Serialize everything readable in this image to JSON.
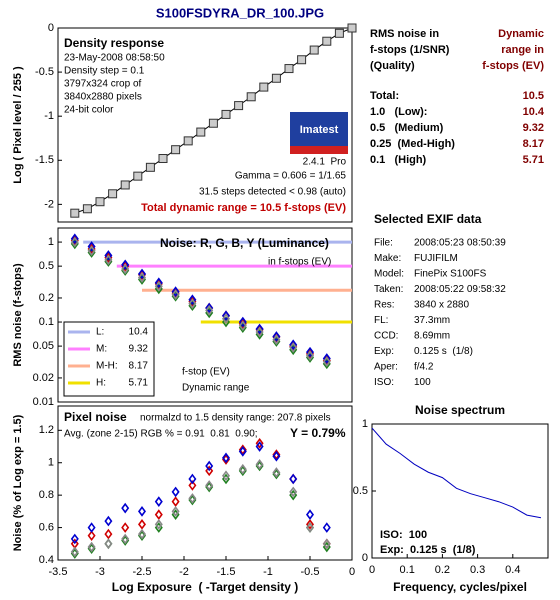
{
  "title": "S100FSDYRA_DR_100.JPG",
  "summary": {
    "header_left": [
      "RMS noise in",
      "f-stops (1/SNR)",
      "(Quality)"
    ],
    "header_right": [
      "Dynamic",
      "range in",
      "f-stops (EV)"
    ],
    "rows": [
      {
        "label": "Total:",
        "value": 10.5
      },
      {
        "label": "1.0   (Low):",
        "value": 10.4
      },
      {
        "label": "0.5   (Medium)",
        "value": 9.32
      },
      {
        "label": "0.25  (Med-High)",
        "value": 8.17
      },
      {
        "label": "0.1   (High)",
        "value": 5.71
      }
    ]
  },
  "exif": {
    "title": "Selected EXIF data",
    "rows": [
      {
        "key": "File:",
        "value": "2008:05:23 08:50:39"
      },
      {
        "key": "Make:",
        "value": "FUJIFILM"
      },
      {
        "key": "Model:",
        "value": "FinePix S100FS"
      },
      {
        "key": "Taken:",
        "value": "2008:05:22 09:58:32"
      },
      {
        "key": "Res:",
        "value": "3840 x 2880"
      },
      {
        "key": "FL:",
        "value": "37.3mm"
      },
      {
        "key": "CCD:",
        "value": "8.69mm"
      },
      {
        "key": "Exp:",
        "value": "0.125 s  (1/8)"
      },
      {
        "key": "Aper:",
        "value": "f/4.2"
      },
      {
        "key": "ISO:",
        "value": "100"
      }
    ]
  },
  "chart_data": [
    {
      "type": "line",
      "marker": "square",
      "title": "Density response",
      "info": [
        "23-May-2008 08:58:50",
        "Density step = 0.1",
        "3797x324 crop of",
        "3840x2880 pixels",
        "24-bit color"
      ],
      "logo": "Imatest",
      "version": "2.4.1  Pro",
      "fit_notes": [
        "Gamma = 0.606 = 1/1.65",
        "31.5 steps detected < 0.98 (auto)"
      ],
      "total": "Total dynamic range = 10.5 f-stops (EV)",
      "ylabel": "Log ( Pixel level / 255 )",
      "xlim": [
        -3.5,
        0
      ],
      "ylim": [
        -2.2,
        0
      ],
      "yticks": [
        0,
        -0.5,
        -1,
        -1.5,
        -2
      ],
      "x": [
        -3.3,
        -3.15,
        -3.0,
        -2.85,
        -2.7,
        -2.55,
        -2.4,
        -2.25,
        -2.1,
        -1.95,
        -1.8,
        -1.65,
        -1.5,
        -1.35,
        -1.2,
        -1.05,
        -0.9,
        -0.75,
        -0.6,
        -0.45,
        -0.3,
        -0.15,
        0
      ],
      "values": [
        -2.1,
        -2.05,
        -1.97,
        -1.88,
        -1.78,
        -1.68,
        -1.58,
        -1.48,
        -1.38,
        -1.28,
        -1.18,
        -1.08,
        -0.98,
        -0.88,
        -0.78,
        -0.67,
        -0.57,
        -0.46,
        -0.36,
        -0.25,
        -0.15,
        -0.06,
        0
      ],
      "color": "#cccccc"
    },
    {
      "type": "scatter",
      "log_y": true,
      "title": "Noise: R, G, B, Y (Luminance)",
      "subtitle": "in f-stops (EV)",
      "legend_notes": [
        "f-stop (EV)",
        "Dynamic range"
      ],
      "ylabel": "RMS noise (f-stops)",
      "xlim": [
        -3.5,
        0
      ],
      "ylim": [
        0.01,
        1.5
      ],
      "yticks": [
        0.01,
        0.02,
        0.05,
        0.1,
        0.2,
        0.5,
        1
      ],
      "ranges": [
        {
          "name": "L:",
          "color": "#aab4ee",
          "level": 1,
          "range": 10.4,
          "start": -3.2
        },
        {
          "name": "M:",
          "color": "#ff80ff",
          "level": 0.5,
          "range": 9.32,
          "start": -2.8
        },
        {
          "name": "M-H:",
          "color": "#ffb090",
          "level": 0.25,
          "range": 8.17,
          "start": -2.5
        },
        {
          "name": "H:",
          "color": "#f0e000",
          "level": 0.1,
          "range": 5.71,
          "start": -1.8
        }
      ],
      "x": [
        -3.3,
        -3.1,
        -2.9,
        -2.7,
        -2.5,
        -2.3,
        -2.1,
        -1.9,
        -1.7,
        -1.5,
        -1.3,
        -1.1,
        -0.9,
        -0.7,
        -0.5,
        -0.3
      ],
      "series": [
        {
          "color": "#d00000",
          "values": [
            1.05,
            0.82,
            0.64,
            0.5,
            0.39,
            0.3,
            0.23,
            0.18,
            0.15,
            0.12,
            0.095,
            0.08,
            0.065,
            0.05,
            0.04,
            0.033
          ]
        },
        {
          "color": "#208020",
          "values": [
            0.95,
            0.74,
            0.57,
            0.44,
            0.34,
            0.26,
            0.21,
            0.16,
            0.13,
            0.1,
            0.085,
            0.07,
            0.057,
            0.045,
            0.036,
            0.03
          ]
        },
        {
          "color": "#0000d0",
          "values": [
            1.1,
            0.88,
            0.68,
            0.52,
            0.4,
            0.31,
            0.24,
            0.19,
            0.15,
            0.12,
            0.1,
            0.082,
            0.066,
            0.052,
            0.042,
            0.035
          ]
        },
        {
          "color": "#888888",
          "values": [
            1.0,
            0.78,
            0.6,
            0.46,
            0.36,
            0.28,
            0.22,
            0.17,
            0.14,
            0.11,
            0.09,
            0.075,
            0.06,
            0.048,
            0.038,
            0.032
          ]
        }
      ]
    },
    {
      "type": "scatter",
      "title": "Pixel noise",
      "subtitle": "normalzd to 1.5 density range: 207.8 pixels",
      "avg": "Avg. (zone 2-15) RGB % = 0.91  0.81  0.90;",
      "y_avg": "Y = 0.79%",
      "ylabel": "Noise (% of Log exp = 1.5)",
      "xlabel": "Log Exposure  ( -Target density )",
      "xlim": [
        -3.5,
        0
      ],
      "xticks": [
        -3.5,
        -3,
        -2.5,
        -2,
        -1.5,
        -1,
        -0.5,
        0
      ],
      "ylim": [
        0.4,
        1.35
      ],
      "yticks": [
        0.4,
        0.6,
        0.8,
        1,
        1.2
      ],
      "x": [
        -3.3,
        -3.1,
        -2.9,
        -2.7,
        -2.5,
        -2.3,
        -2.1,
        -1.9,
        -1.7,
        -1.5,
        -1.3,
        -1.1,
        -0.9,
        -0.7,
        -0.5,
        -0.3
      ],
      "series": [
        {
          "color": "#d00000",
          "values": [
            0.5,
            0.55,
            0.56,
            0.6,
            0.62,
            0.68,
            0.76,
            0.86,
            0.95,
            1.02,
            1.08,
            1.12,
            1.05,
            0.9,
            0.62,
            0.5
          ]
        },
        {
          "color": "#208020",
          "values": [
            0.44,
            0.47,
            0.5,
            0.52,
            0.55,
            0.6,
            0.68,
            0.77,
            0.85,
            0.9,
            0.95,
            0.98,
            0.93,
            0.8,
            0.6,
            0.48
          ]
        },
        {
          "color": "#0000d0",
          "values": [
            0.53,
            0.6,
            0.64,
            0.72,
            0.7,
            0.76,
            0.82,
            0.9,
            0.98,
            1.03,
            1.07,
            1.1,
            1.04,
            0.9,
            0.68,
            0.6
          ]
        },
        {
          "color": "#888888",
          "values": [
            0.45,
            0.48,
            0.5,
            0.53,
            0.56,
            0.62,
            0.7,
            0.78,
            0.86,
            0.92,
            0.96,
            0.99,
            0.94,
            0.82,
            0.6,
            0.5
          ]
        }
      ]
    },
    {
      "type": "line",
      "title": "Noise spectrum",
      "xlabel": "Frequency, cycles/pixel",
      "notes": [
        "ISO:  100",
        "Exp:  0.125 s  (1/8)"
      ],
      "xlim": [
        0,
        0.5
      ],
      "xticks": [
        0,
        0.1,
        0.2,
        0.3,
        0.4
      ],
      "ylim": [
        0,
        1
      ],
      "yticks": [
        0,
        0.5,
        1
      ],
      "x": [
        0,
        0.04,
        0.08,
        0.12,
        0.16,
        0.2,
        0.24,
        0.28,
        0.32,
        0.36,
        0.4,
        0.44,
        0.48
      ],
      "values": [
        0.97,
        0.85,
        0.78,
        0.7,
        0.64,
        0.6,
        0.52,
        0.48,
        0.45,
        0.42,
        0.38,
        0.32,
        0.3
      ],
      "color": "#0000c0"
    }
  ]
}
